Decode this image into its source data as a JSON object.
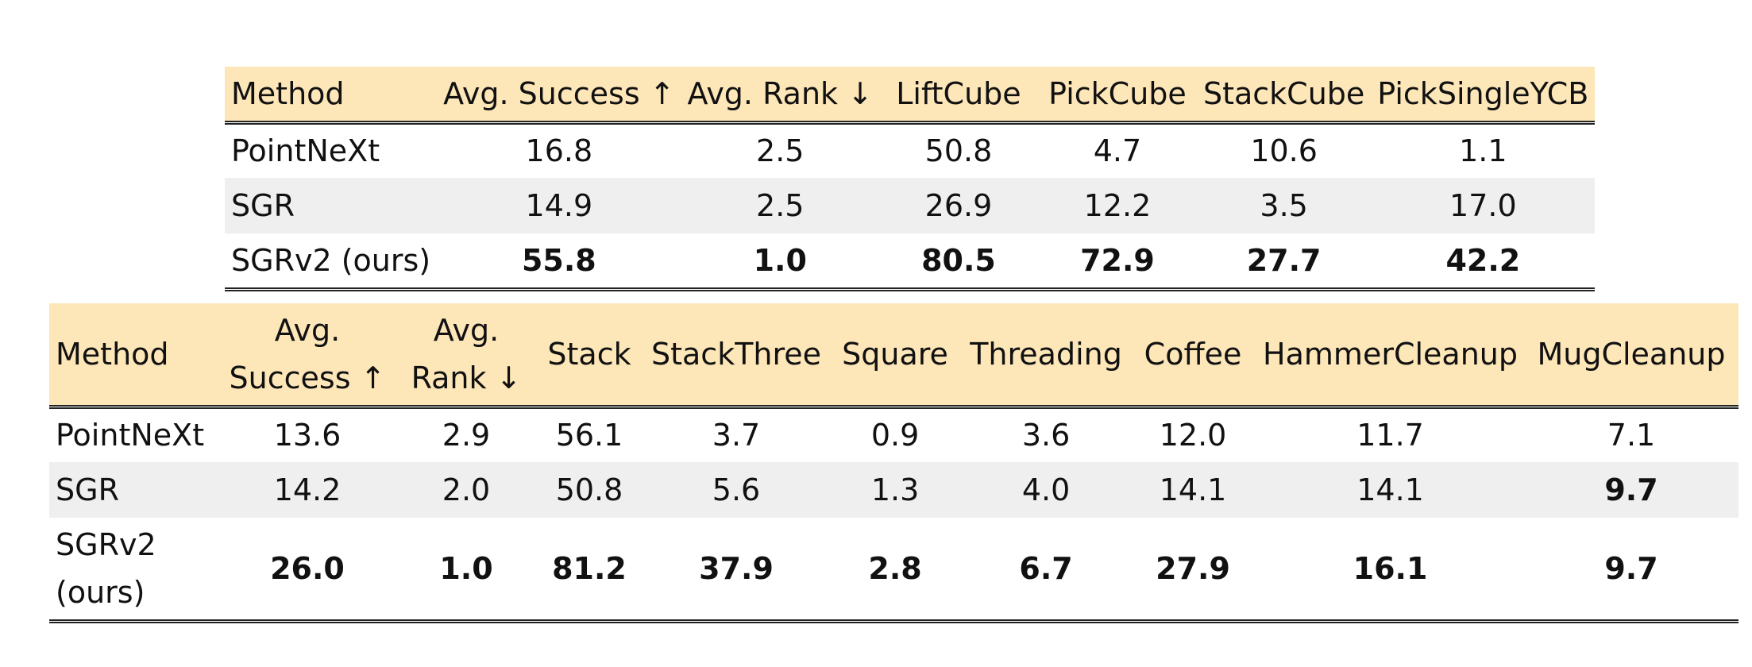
{
  "table1": {
    "columns": [
      "Method",
      "Avg. Success ↑",
      "Avg. Rank ↓",
      "LiftCube",
      "PickCube",
      "StackCube",
      "PickSingleYCB"
    ],
    "rows": [
      {
        "method": "PointNeXt",
        "values": [
          "16.8",
          "2.5",
          "50.8",
          "4.7",
          "10.6",
          "1.1"
        ],
        "bold": [
          false,
          false,
          false,
          false,
          false,
          false
        ]
      },
      {
        "method": "SGR",
        "values": [
          "14.9",
          "2.5",
          "26.9",
          "12.2",
          "3.5",
          "17.0"
        ],
        "bold": [
          false,
          false,
          false,
          false,
          false,
          false
        ]
      },
      {
        "method": "SGRv2 (ours)",
        "values": [
          "55.8",
          "1.0",
          "80.5",
          "72.9",
          "27.7",
          "42.2"
        ],
        "bold": [
          true,
          true,
          true,
          true,
          true,
          true
        ]
      }
    ]
  },
  "table2": {
    "columns": [
      "Method",
      "Avg. Success ↑",
      "Avg. Rank ↓",
      "Stack",
      "StackThree",
      "Square",
      "Threading",
      "Coffee",
      "HammerCleanup",
      "MugCleanup"
    ],
    "rows": [
      {
        "method": "PointNeXt",
        "values": [
          "13.6",
          "2.9",
          "56.1",
          "3.7",
          "0.9",
          "3.6",
          "12.0",
          "11.7",
          "7.1"
        ],
        "bold": [
          false,
          false,
          false,
          false,
          false,
          false,
          false,
          false,
          false
        ]
      },
      {
        "method": "SGR",
        "values": [
          "14.2",
          "2.0",
          "50.8",
          "5.6",
          "1.3",
          "4.0",
          "14.1",
          "14.1",
          "9.7"
        ],
        "bold": [
          false,
          false,
          false,
          false,
          false,
          false,
          false,
          false,
          true
        ]
      },
      {
        "method": "SGRv2 (ours)",
        "values": [
          "26.0",
          "1.0",
          "81.2",
          "37.9",
          "2.8",
          "6.7",
          "27.9",
          "16.1",
          "9.7"
        ],
        "bold": [
          true,
          true,
          true,
          true,
          true,
          true,
          true,
          true,
          true
        ]
      }
    ]
  },
  "colors": {
    "header_bg": "#fde6b8",
    "shaded_row": "#efefef"
  }
}
